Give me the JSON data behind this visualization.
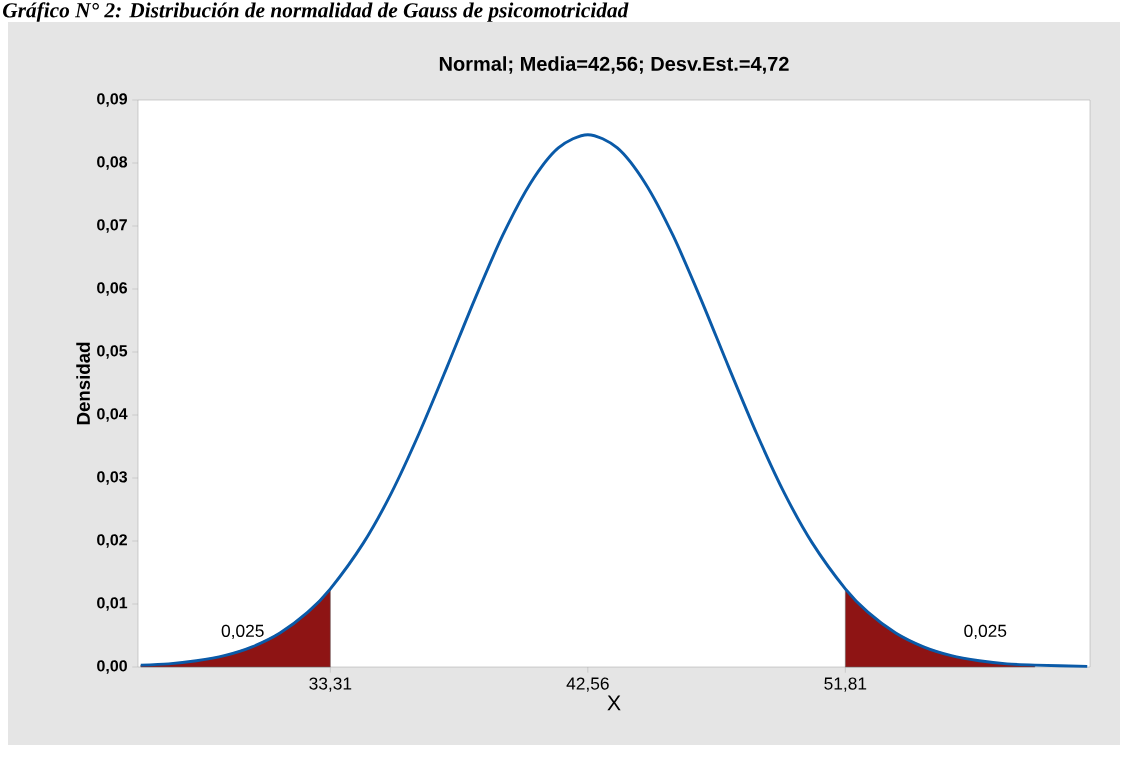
{
  "chart_data": {
    "type": "line",
    "title": "Normal; Media=42,56; Desv.Est.=4,72",
    "xlabel": "X",
    "ylabel": "Densidad",
    "annotations": [
      "*Gráfico N° 2: Distribución de normalidad de Gauss de psicomotricidad*",
      "0,025",
      "0,025"
    ],
    "xlim": [
      26.4,
      60.6
    ],
    "ylim": [
      0,
      0.09
    ],
    "xticks": [
      {
        "value": 33.31,
        "label": "33,31"
      },
      {
        "value": 42.56,
        "label": "42,56"
      },
      {
        "value": 51.81,
        "label": "51,81"
      }
    ],
    "yticks": [
      {
        "value": 0,
        "label": "0,00"
      },
      {
        "value": 0.01,
        "label": "0,01"
      },
      {
        "value": 0.02,
        "label": "0,02"
      },
      {
        "value": 0.03,
        "label": "0,03"
      },
      {
        "value": 0.04,
        "label": "0,04"
      },
      {
        "value": 0.05,
        "label": "0,05"
      },
      {
        "value": 0.06,
        "label": "0,06"
      },
      {
        "value": 0.07,
        "label": "0,07"
      },
      {
        "value": 0.08,
        "label": "0,08"
      },
      {
        "value": 0.09,
        "label": "0,09"
      }
    ],
    "series": [
      {
        "type": "area",
        "color": "#8e1414",
        "x": [
          26.5,
          27.5,
          28.5,
          29.5,
          30.5,
          31.5,
          32.5,
          33.31
        ],
        "values": [
          0.0003,
          0.0005,
          0.001,
          0.0018,
          0.0032,
          0.0054,
          0.0087,
          0.0124
        ]
      },
      {
        "type": "area",
        "color": "#8e1414",
        "x": [
          51.81,
          52.62,
          53.62,
          54.62,
          55.62,
          56.62,
          57.62,
          58.62
        ],
        "values": [
          0.0124,
          0.0087,
          0.0054,
          0.0032,
          0.0018,
          0.001,
          0.0005,
          0.0003
        ]
      },
      {
        "color": "#0a5aa8",
        "x": [
          26.5,
          27.5,
          28.5,
          29.5,
          30.5,
          31.5,
          32.5,
          33.31,
          34.5,
          35.5,
          36.5,
          37.5,
          38.5,
          39.5,
          40.5,
          41.5,
          42.56,
          43.62,
          44.62,
          45.62,
          46.62,
          47.62,
          48.62,
          49.62,
          50.62,
          51.81,
          52.62,
          53.62,
          54.62,
          55.62,
          56.62,
          57.62,
          58.62,
          60.5
        ],
        "values": [
          0.0003,
          0.0005,
          0.001,
          0.0018,
          0.0032,
          0.0054,
          0.0087,
          0.0124,
          0.0197,
          0.0276,
          0.0371,
          0.0476,
          0.0584,
          0.0685,
          0.0768,
          0.0824,
          0.0845,
          0.0824,
          0.0768,
          0.0685,
          0.0584,
          0.0476,
          0.0371,
          0.0276,
          0.0197,
          0.0124,
          0.0087,
          0.0054,
          0.0032,
          0.0018,
          0.001,
          0.0005,
          0.0003,
          0.0001
        ]
      }
    ]
  }
}
